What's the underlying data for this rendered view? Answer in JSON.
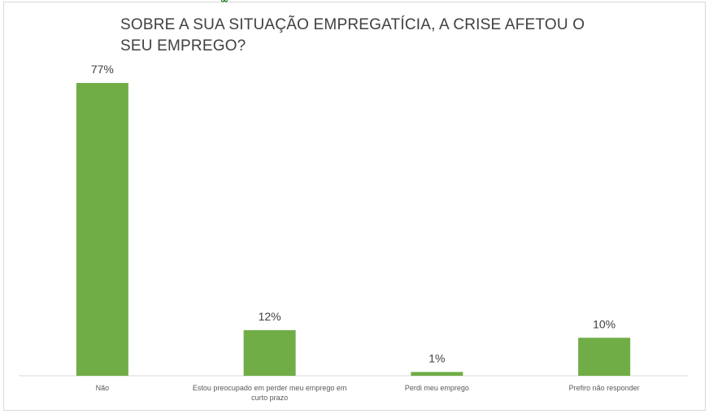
{
  "chart_data": {
    "type": "bar",
    "title": "SOBRE A SUA SITUAÇÃO EMPREGATÍCIA, A CRISE AFETOU O SEU EMPREGO?",
    "categories": [
      "Não",
      "Estou preocupado em perder meu emprego em curto prazo",
      "Perdi meu emprego",
      "Prefiro não responder"
    ],
    "values": [
      77,
      12,
      1,
      10
    ],
    "data_labels": [
      "77%",
      "12%",
      "1%",
      "10%"
    ],
    "unit": "%",
    "ylim": [
      0,
      80
    ],
    "grid": false,
    "legend": "none",
    "bar_color": "#70ad47",
    "axis_color": "#d9d9d9"
  }
}
